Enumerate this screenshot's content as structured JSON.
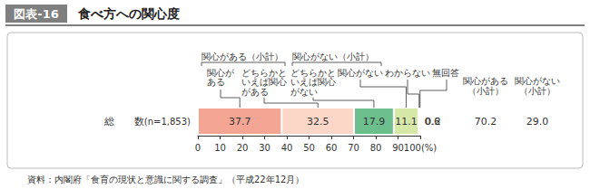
{
  "figure_number": "図表-16",
  "source": "資料：内閣府「食育の現状と意識に関する調査」（平成22年12月）",
  "chart_data": {
    "type": "bar",
    "title": "食べ方への関心度",
    "orientation": "horizontal",
    "stacked": true,
    "data_labels": true,
    "grid": false,
    "categories": [
      "総　　数"
    ],
    "sample_size": "(n=1,853)",
    "series": [
      {
        "name": "関心がある",
        "color": "#f4a594",
        "values": [
          37.7
        ]
      },
      {
        "name": "どちらかといえば関心がある",
        "color": "#fcd7c8",
        "values": [
          32.5
        ]
      },
      {
        "name": "どちらかといえば関心がない",
        "color": "#6cbf8c",
        "values": [
          17.9
        ]
      },
      {
        "name": "関心がない",
        "color": "#d6e8a8",
        "values": [
          11.1
        ]
      },
      {
        "name": "わからない",
        "color": "#eeeeee",
        "values": [
          0.6
        ]
      },
      {
        "name": "無回答",
        "color": "#ffffff",
        "values": [
          0.2
        ]
      }
    ],
    "groups": [
      {
        "label": "関心がある（小計）",
        "members": [
          "関心がある",
          "どちらかといえば関心がある"
        ],
        "value": 70.2
      },
      {
        "label": "関心がない（小計）",
        "members": [
          "どちらかといえば関心がない",
          "関心がない"
        ],
        "value": 29.0
      }
    ],
    "xlim": [
      0,
      100
    ],
    "xticks": [
      0,
      10,
      20,
      30,
      40,
      50,
      60,
      70,
      80,
      90,
      {
        "value": 100,
        "label": "100(%)"
      }
    ]
  }
}
